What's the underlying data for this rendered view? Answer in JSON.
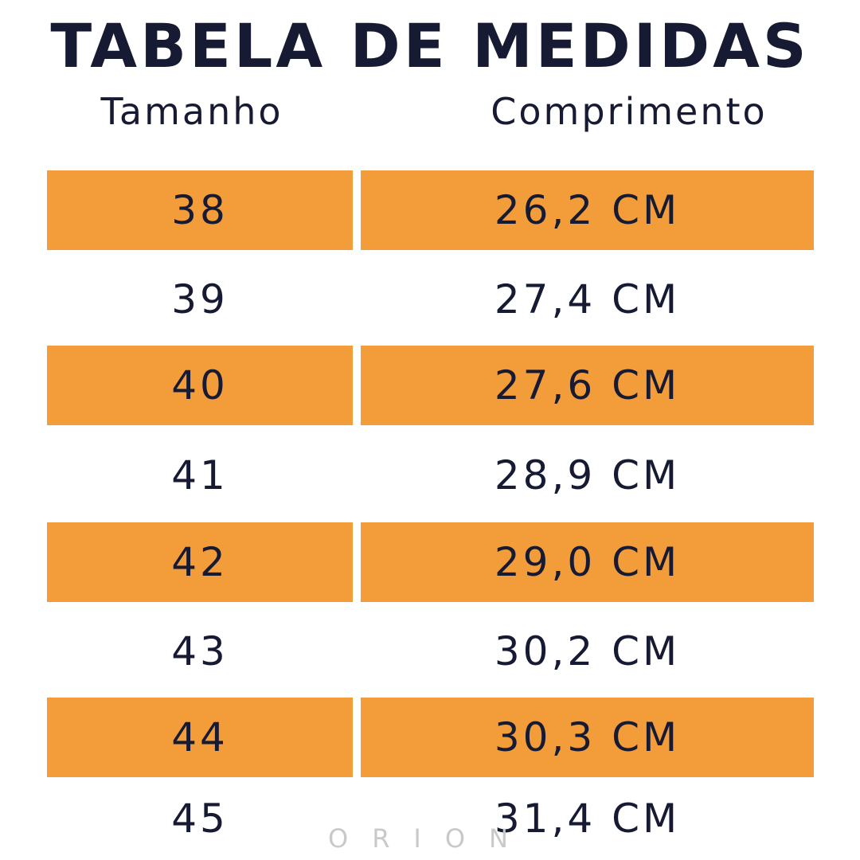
{
  "title": "TABELA DE MEDIDAS",
  "columns": {
    "size": "Tamanho",
    "length": "Comprimento"
  },
  "rows": [
    {
      "size": "38",
      "length": "26,2 CM",
      "highlight": true
    },
    {
      "size": "39",
      "length": "27,4 CM",
      "highlight": false
    },
    {
      "size": "40",
      "length": "27,6 CM",
      "highlight": true
    },
    {
      "size": "41",
      "length": "28,9 CM",
      "highlight": false
    },
    {
      "size": "42",
      "length": "29,0 CM",
      "highlight": true
    },
    {
      "size": "43",
      "length": "30,2 CM",
      "highlight": false
    },
    {
      "size": "44",
      "length": "30,3 CM",
      "highlight": true
    },
    {
      "size": "45",
      "length": "31,4 CM",
      "highlight": false
    }
  ],
  "watermark": "ORION",
  "colors": {
    "text": "#161a33",
    "highlight": "#f39c3a",
    "watermark": "#c9c9c9"
  }
}
